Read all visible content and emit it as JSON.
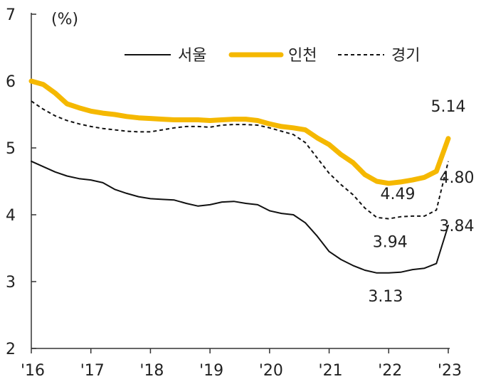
{
  "chart_data": {
    "type": "line",
    "unit_label": "(%)",
    "title": "",
    "xlabel": "",
    "ylabel": "",
    "ylim": [
      2,
      7
    ],
    "yticks": [
      2,
      3,
      4,
      5,
      6,
      7
    ],
    "xlim": [
      2016.0,
      2023.0
    ],
    "xticks": [
      {
        "x": 2016,
        "label": "'16"
      },
      {
        "x": 2017,
        "label": "'17"
      },
      {
        "x": 2018,
        "label": "'18"
      },
      {
        "x": 2019,
        "label": "'19"
      },
      {
        "x": 2020,
        "label": "'20"
      },
      {
        "x": 2021,
        "label": "'21"
      },
      {
        "x": 2022,
        "label": "'22"
      },
      {
        "x": 2023,
        "label": "'23"
      }
    ],
    "grid": false,
    "legend_position": "top-right",
    "series": [
      {
        "name": "서울",
        "color": "#111111",
        "style": "solid",
        "x": [
          2016.0,
          2016.2,
          2016.4,
          2016.6,
          2016.8,
          2017.0,
          2017.2,
          2017.4,
          2017.6,
          2017.8,
          2018.0,
          2018.2,
          2018.4,
          2018.6,
          2018.8,
          2019.0,
          2019.2,
          2019.4,
          2019.6,
          2019.8,
          2020.0,
          2020.2,
          2020.4,
          2020.6,
          2020.8,
          2021.0,
          2021.2,
          2021.4,
          2021.6,
          2021.8,
          2022.0,
          2022.2,
          2022.4,
          2022.6,
          2022.8,
          2023.0
        ],
        "values": [
          4.8,
          4.72,
          4.64,
          4.58,
          4.54,
          4.52,
          4.48,
          4.38,
          4.32,
          4.27,
          4.24,
          4.23,
          4.22,
          4.17,
          4.13,
          4.15,
          4.19,
          4.2,
          4.17,
          4.15,
          4.06,
          4.02,
          4.0,
          3.88,
          3.68,
          3.45,
          3.33,
          3.24,
          3.17,
          3.13,
          3.13,
          3.14,
          3.18,
          3.2,
          3.27,
          3.84
        ]
      },
      {
        "name": "인천",
        "color": "#f5b800",
        "style": "solid",
        "x": [
          2016.0,
          2016.2,
          2016.4,
          2016.6,
          2016.8,
          2017.0,
          2017.2,
          2017.4,
          2017.6,
          2017.8,
          2018.0,
          2018.2,
          2018.4,
          2018.6,
          2018.8,
          2019.0,
          2019.2,
          2019.4,
          2019.6,
          2019.8,
          2020.0,
          2020.2,
          2020.4,
          2020.6,
          2020.8,
          2021.0,
          2021.2,
          2021.4,
          2021.6,
          2021.8,
          2022.0,
          2022.2,
          2022.4,
          2022.6,
          2022.8,
          2023.0
        ],
        "values": [
          6.0,
          5.95,
          5.82,
          5.66,
          5.6,
          5.55,
          5.52,
          5.5,
          5.47,
          5.45,
          5.44,
          5.43,
          5.42,
          5.42,
          5.42,
          5.41,
          5.42,
          5.43,
          5.43,
          5.41,
          5.36,
          5.32,
          5.3,
          5.27,
          5.15,
          5.05,
          4.9,
          4.78,
          4.6,
          4.5,
          4.47,
          4.49,
          4.52,
          4.56,
          4.65,
          5.14
        ]
      },
      {
        "name": "경기",
        "color": "#111111",
        "style": "dashed",
        "x": [
          2016.0,
          2016.2,
          2016.4,
          2016.6,
          2016.8,
          2017.0,
          2017.2,
          2017.4,
          2017.6,
          2017.8,
          2018.0,
          2018.2,
          2018.4,
          2018.6,
          2018.8,
          2019.0,
          2019.2,
          2019.4,
          2019.6,
          2019.8,
          2020.0,
          2020.2,
          2020.4,
          2020.6,
          2020.8,
          2021.0,
          2021.2,
          2021.4,
          2021.6,
          2021.8,
          2022.0,
          2022.2,
          2022.4,
          2022.6,
          2022.8,
          2023.0
        ],
        "values": [
          5.7,
          5.58,
          5.48,
          5.41,
          5.36,
          5.32,
          5.29,
          5.27,
          5.25,
          5.24,
          5.24,
          5.27,
          5.3,
          5.32,
          5.32,
          5.31,
          5.34,
          5.35,
          5.35,
          5.34,
          5.3,
          5.25,
          5.2,
          5.08,
          4.85,
          4.62,
          4.45,
          4.3,
          4.1,
          3.96,
          3.94,
          3.97,
          3.98,
          3.98,
          4.07,
          4.8
        ]
      }
    ],
    "annotations": [
      {
        "text": "5.14",
        "series": "인천",
        "x": 2023.0,
        "y": 5.14
      },
      {
        "text": "4.49",
        "series": "인천",
        "x": 2022.2,
        "y": 4.49
      },
      {
        "text": "4.80",
        "series": "경기",
        "x": 2023.0,
        "y": 4.8
      },
      {
        "text": "3.94",
        "series": "경기",
        "x": 2022.0,
        "y": 3.94
      },
      {
        "text": "3.84",
        "series": "서울",
        "x": 2023.0,
        "y": 3.84
      },
      {
        "text": "3.13",
        "series": "서울",
        "x": 2021.9,
        "y": 3.13
      }
    ]
  }
}
